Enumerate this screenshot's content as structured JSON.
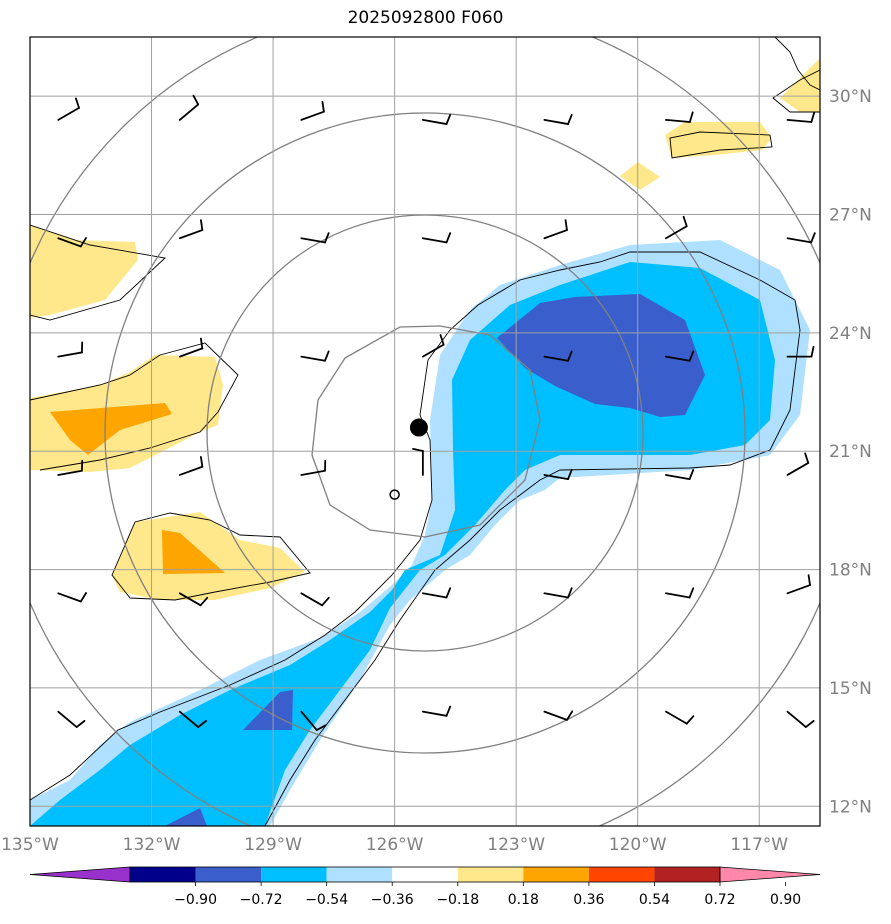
{
  "title": "2025092800 F060",
  "map": {
    "lon_range": [
      -135,
      -115.5
    ],
    "lat_range": [
      11.5,
      31.5
    ],
    "lat_ticks": [
      {
        "value": 12,
        "label": "12°N"
      },
      {
        "value": 15,
        "label": "15°N"
      },
      {
        "value": 18,
        "label": "18°N"
      },
      {
        "value": 21,
        "label": "21°N"
      },
      {
        "value": 24,
        "label": "24°N"
      },
      {
        "value": 27,
        "label": "27°N"
      },
      {
        "value": 30,
        "label": "30°N"
      }
    ],
    "lon_ticks": [
      {
        "value": -135,
        "label": "135°W"
      },
      {
        "value": -132,
        "label": "132°W"
      },
      {
        "value": -129,
        "label": "129°W"
      },
      {
        "value": -126,
        "label": "126°W"
      },
      {
        "value": -123,
        "label": "123°W"
      },
      {
        "value": -120,
        "label": "120°W"
      },
      {
        "value": -117,
        "label": "117°W"
      }
    ],
    "storm_center": {
      "lon": -125.4,
      "lat": 21.6
    },
    "small_circle": {
      "lon": -126.0,
      "lat": 19.9
    },
    "range_rings_deg": [
      3,
      6,
      9,
      12
    ],
    "colors": {
      "frame": "#000000",
      "grid": "#a0a0a0",
      "ring": "#808080",
      "contour": "#000000",
      "barb": "#000000"
    }
  },
  "colorbar": {
    "boundaries": [
      "−0.90",
      "−0.72",
      "−0.54",
      "−0.36",
      "−0.18",
      "0.18",
      "0.36",
      "0.54",
      "0.72",
      "0.90"
    ],
    "colors": [
      "#9932cc",
      "#00008b",
      "#3a5fcd",
      "#00bfff",
      "#b0e0ff",
      "#ffffff",
      "#ffe88c",
      "#ffa500",
      "#ff4500",
      "#b22222",
      "#ff88aa"
    ]
  }
}
